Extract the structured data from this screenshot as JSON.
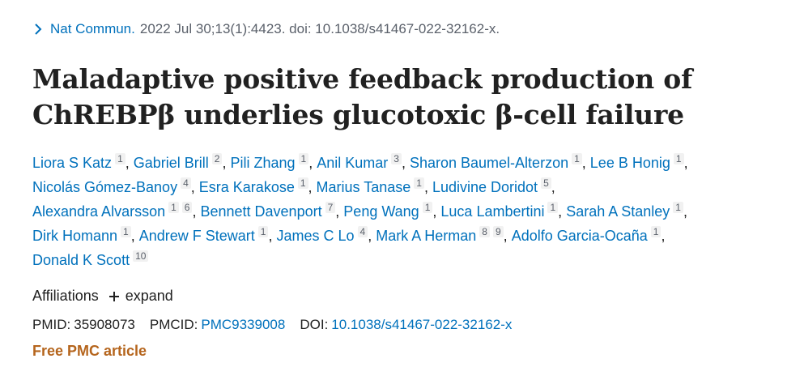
{
  "citation": {
    "journal": "Nat Commun.",
    "details": "2022 Jul 30;13(1):4423. doi: 10.1038/s41467-022-32162-x."
  },
  "title_line1": "Maladaptive positive feedback production of",
  "title_line2": "ChREBPβ underlies glucotoxic β-cell failure",
  "authors": [
    {
      "name": "Liora S Katz",
      "aff": "1"
    },
    {
      "name": "Gabriel Brill",
      "aff": "2"
    },
    {
      "name": "Pili Zhang",
      "aff": "1"
    },
    {
      "name": "Anil Kumar",
      "aff": "3"
    },
    {
      "name": "Sharon Baumel-Alterzon",
      "aff": "1"
    },
    {
      "name": "Lee B Honig",
      "aff": "1"
    },
    {
      "name": "Nicolás Gómez-Banoy",
      "aff": "4"
    },
    {
      "name": "Esra Karakose",
      "aff": "1"
    },
    {
      "name": "Marius Tanase",
      "aff": "1"
    },
    {
      "name": "Ludivine Doridot",
      "aff": "5"
    },
    {
      "name": "Alexandra Alvarsson",
      "aff": "1",
      "aff2": "6"
    },
    {
      "name": "Bennett Davenport",
      "aff": "7"
    },
    {
      "name": "Peng Wang",
      "aff": "1"
    },
    {
      "name": "Luca Lambertini",
      "aff": "1"
    },
    {
      "name": "Sarah A Stanley",
      "aff": "1"
    },
    {
      "name": "Dirk Homann",
      "aff": "1"
    },
    {
      "name": "Andrew F Stewart",
      "aff": "1"
    },
    {
      "name": "James C Lo",
      "aff": "4"
    },
    {
      "name": "Mark A Herman",
      "aff": "8",
      "aff2": "9"
    },
    {
      "name": "Adolfo Garcia-Ocaña",
      "aff": "1"
    },
    {
      "name": "Donald K Scott",
      "aff": "10"
    }
  ],
  "affiliations": {
    "label": "Affiliations",
    "expand": "expand"
  },
  "ids": {
    "pmid_label": "PMID:",
    "pmid": "35908073",
    "pmcid_label": "PMCID:",
    "pmcid": "PMC9339008",
    "doi_label": "DOI:",
    "doi": "10.1038/s41467-022-32162-x"
  },
  "free_label": "Free PMC article",
  "colors": {
    "link": "#0071bc",
    "free": "#b5651d",
    "text": "#212121",
    "muted": "#5b616b"
  },
  "icons": {
    "citation": "chevron-right-icon",
    "expand": "plus-icon"
  }
}
